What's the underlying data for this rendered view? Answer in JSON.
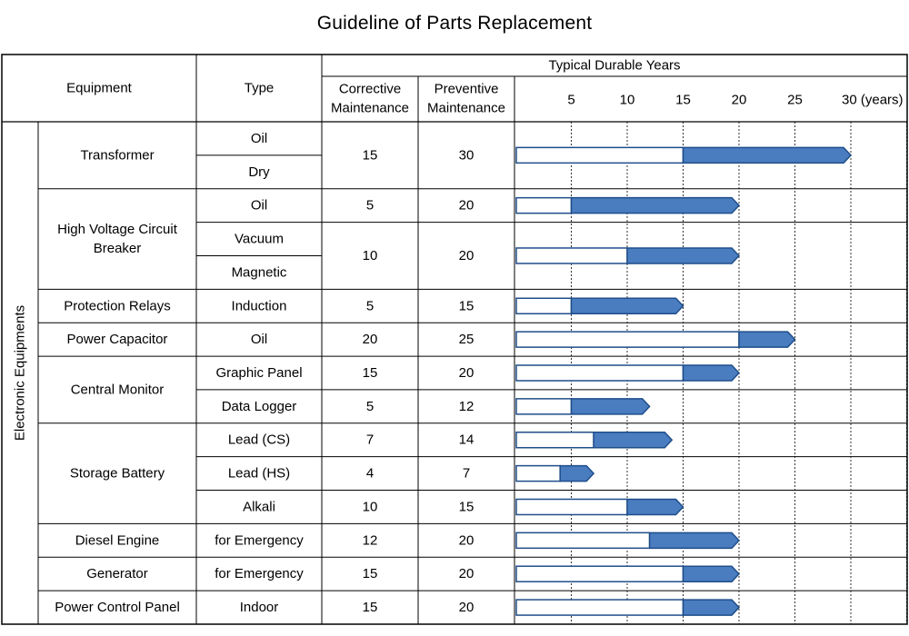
{
  "title": "Guideline of Parts Replacement",
  "headers": {
    "equipment": "Equipment",
    "type": "Type",
    "corrective": [
      "Corrective",
      "Maintenance"
    ],
    "preventive": [
      "Preventive",
      "Maintenance"
    ],
    "typical": "Typical Durable Years"
  },
  "group_label": "Electronic Equipments",
  "colors": {
    "bar_fill": "#4a7cc0",
    "bar_stroke": "#1f4e8a",
    "grid": "#000000"
  },
  "chart_data": {
    "type": "bar",
    "orientation": "horizontal",
    "stacked": true,
    "title": "Guideline of Parts Replacement",
    "xlabel": "Typical Durable Years",
    "xlim": [
      0,
      35
    ],
    "xticks": [
      5,
      10,
      15,
      20,
      25,
      30
    ],
    "xtick_labels": [
      "5",
      "10",
      "15",
      "20",
      "25",
      "30 (years)"
    ],
    "grid": true,
    "series": [
      {
        "name": "Corrective Maintenance",
        "fill": "white"
      },
      {
        "name": "Preventive Maintenance",
        "fill": "#4a7cc0"
      }
    ],
    "equipment": [
      {
        "name": [
          "Transformer"
        ],
        "types": [
          "Oil",
          "Dry"
        ],
        "rows": [
          {
            "span": [
              0,
              1
            ],
            "corrective": 15,
            "preventive": 30
          }
        ]
      },
      {
        "name": [
          "High Voltage Circuit",
          "Breaker"
        ],
        "types": [
          "Oil",
          "Vacuum",
          "Magnetic"
        ],
        "rows": [
          {
            "span": [
              0,
              0
            ],
            "corrective": 5,
            "preventive": 20
          },
          {
            "span": [
              1,
              2
            ],
            "corrective": 10,
            "preventive": 20
          }
        ]
      },
      {
        "name": [
          "Protection Relays"
        ],
        "types": [
          "Induction"
        ],
        "rows": [
          {
            "span": [
              0,
              0
            ],
            "corrective": 5,
            "preventive": 15
          }
        ]
      },
      {
        "name": [
          "Power Capacitor"
        ],
        "types": [
          "Oil"
        ],
        "rows": [
          {
            "span": [
              0,
              0
            ],
            "corrective": 20,
            "preventive": 25
          }
        ]
      },
      {
        "name": [
          "Central Monitor"
        ],
        "types": [
          "Graphic Panel",
          "Data Logger"
        ],
        "rows": [
          {
            "span": [
              0,
              0
            ],
            "corrective": 15,
            "preventive": 20
          },
          {
            "span": [
              1,
              1
            ],
            "corrective": 5,
            "preventive": 12
          }
        ]
      },
      {
        "name": [
          "Storage Battery"
        ],
        "types": [
          "Lead (CS)",
          "Lead (HS)",
          "Alkali"
        ],
        "rows": [
          {
            "span": [
              0,
              0
            ],
            "corrective": 7,
            "preventive": 14
          },
          {
            "span": [
              1,
              1
            ],
            "corrective": 4,
            "preventive": 7
          },
          {
            "span": [
              2,
              2
            ],
            "corrective": 10,
            "preventive": 15
          }
        ]
      },
      {
        "name": [
          "Diesel Engine"
        ],
        "types": [
          "for Emergency"
        ],
        "rows": [
          {
            "span": [
              0,
              0
            ],
            "corrective": 12,
            "preventive": 20
          }
        ]
      },
      {
        "name": [
          "Generator"
        ],
        "types": [
          "for Emergency"
        ],
        "rows": [
          {
            "span": [
              0,
              0
            ],
            "corrective": 15,
            "preventive": 20
          }
        ]
      },
      {
        "name": [
          "Power Control Panel"
        ],
        "types": [
          "Indoor"
        ],
        "rows": [
          {
            "span": [
              0,
              0
            ],
            "corrective": 15,
            "preventive": 20
          }
        ]
      }
    ]
  }
}
